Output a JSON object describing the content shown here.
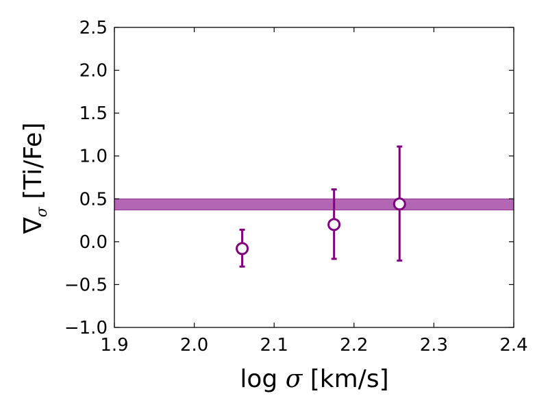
{
  "chart_data": {
    "type": "scatter",
    "xlabel": "log σ [km/s]",
    "ylabel": "∇σ [Ti/Fe]",
    "ylabel_main": "∇",
    "ylabel_sub": "σ",
    "ylabel_rest": " [Ti/Fe]",
    "xlabel_pre": "log ",
    "xlabel_sym": "σ",
    "xlabel_post": " [km/s]",
    "xlim": [
      1.9,
      2.4
    ],
    "ylim": [
      -1.0,
      2.5
    ],
    "xticks": [
      1.9,
      2.0,
      2.1,
      2.2,
      2.3,
      2.4
    ],
    "xtick_labels": [
      "1.9",
      "2.0",
      "2.1",
      "2.2",
      "2.3",
      "2.4"
    ],
    "yticks": [
      -1.0,
      -0.5,
      0.0,
      0.5,
      1.0,
      1.5,
      2.0,
      2.5
    ],
    "ytick_labels": [
      "−1.0",
      "−0.5",
      "0.0",
      "0.5",
      "1.0",
      "1.5",
      "2.0",
      "2.5"
    ],
    "grid": false,
    "band": {
      "y_low": 0.37,
      "y_high": 0.5,
      "color": "#b366b3",
      "edge_color": "#8e3a8e"
    },
    "series": [
      {
        "marker": "open-circle",
        "color": "#800080",
        "points": [
          {
            "x": 2.06,
            "y": -0.08,
            "y_err_low": -0.29,
            "y_err_high": 0.14
          },
          {
            "x": 2.175,
            "y": 0.2,
            "y_err_low": -0.2,
            "y_err_high": 0.61
          },
          {
            "x": 2.257,
            "y": 0.44,
            "y_err_low": -0.22,
            "y_err_high": 1.11
          }
        ]
      }
    ]
  }
}
